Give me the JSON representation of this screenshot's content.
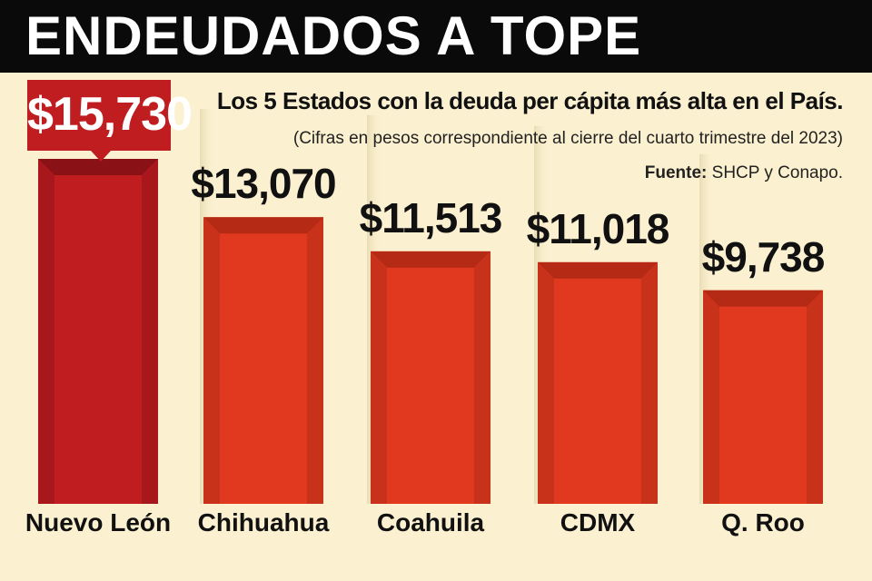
{
  "header": {
    "title": "ENDEUDADOS A TOPE"
  },
  "subtitle": "Los 5 Estados con la deuda per cápita más alta en el País.",
  "note": "(Cifras en pesos correspondiente al cierre del cuarto trimestre del 2023)",
  "source": {
    "label": "Fuente:",
    "text": "SHCP y Conapo."
  },
  "colors": {
    "highlight": "#c01d21",
    "bar": "#e0391f",
    "background": "#fbf0cf",
    "header": "#0a0a0a"
  },
  "chart_data": {
    "type": "bar",
    "title": "ENDEUDADOS A TOPE",
    "subtitle": "Los 5 Estados con la deuda per cápita más alta en el País.",
    "categories": [
      "Nuevo León",
      "Chihuahua",
      "Coahuila",
      "CDMX",
      "Q. Roo"
    ],
    "values": [
      15730,
      13070,
      11513,
      11018,
      9738
    ],
    "value_labels": [
      "$15,730",
      "$13,070",
      "$11,513",
      "$11,018",
      "$9,738"
    ],
    "unit": "pesos",
    "highlight_index": 0,
    "xlabel": "",
    "ylabel": "",
    "ylim": [
      0,
      16000
    ],
    "grid": false,
    "legend": "none"
  }
}
